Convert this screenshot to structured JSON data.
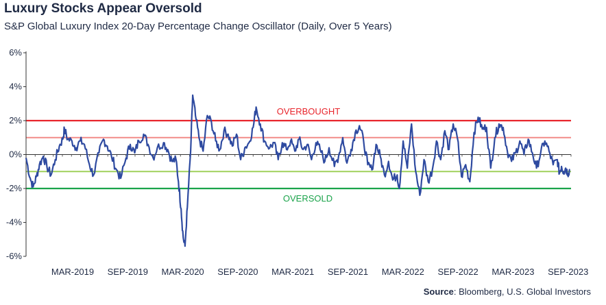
{
  "title": "Luxury Stocks Appear Oversold",
  "subtitle": "S&P Global Luxury Index 20-Day Percentage Change Oscillator (Daily, Over 5 Years)",
  "source_label": "Source",
  "source_text": ": Bloomberg, U.S. Global Investors",
  "colors": {
    "series": "#2e4aa0",
    "overbought": "#e8242b",
    "overbought_light": "#f28b87",
    "oversold": "#1aa34a",
    "oversold_light": "#9fd05a",
    "axis": "#333333",
    "text": "#1f2a44"
  },
  "chart_data": {
    "type": "line",
    "title": "Luxury Stocks Appear Oversold",
    "subtitle": "S&P Global Luxury Index 20-Day Percentage Change Oscillator (Daily, Over 5 Years)",
    "xlabel": "",
    "ylabel": "",
    "ylim": [
      -6,
      6
    ],
    "y_ticks": [
      6,
      4,
      2,
      0,
      -2,
      -4,
      -6
    ],
    "y_tick_labels": [
      "6%",
      "4%",
      "2%",
      "0%",
      "-2%",
      "-4%",
      "-6%"
    ],
    "x_ticks": [
      "MAR-2019",
      "SEP-2019",
      "MAR-2020",
      "SEP-2020",
      "MAR-2021",
      "SEP-2021",
      "MAR-2022",
      "SEP-2022",
      "MAR-2023",
      "SEP-2023"
    ],
    "xlim": [
      "2018-10-01",
      "2023-10-06"
    ],
    "grid": false,
    "reference_lines": [
      {
        "value": 2,
        "label": "OVERBOUGHT",
        "color": "#e8242b"
      },
      {
        "value": 1,
        "label": "",
        "color": "#f28b87"
      },
      {
        "value": -1,
        "label": "",
        "color": "#9fd05a"
      },
      {
        "value": -2,
        "label": "OVERSOLD",
        "color": "#1aa34a"
      }
    ],
    "series": [
      {
        "values": [
          [
            "2018-10-01",
            -0.2
          ],
          [
            "2018-10-15",
            -1.4
          ],
          [
            "2018-10-25",
            -1.9
          ],
          [
            "2018-11-05",
            -1.3
          ],
          [
            "2018-11-15",
            -0.6
          ],
          [
            "2018-11-28",
            -0.1
          ],
          [
            "2018-12-10",
            -0.7
          ],
          [
            "2018-12-24",
            -1.2
          ],
          [
            "2019-01-07",
            -0.3
          ],
          [
            "2019-01-21",
            0.5
          ],
          [
            "2019-02-01",
            0.9
          ],
          [
            "2019-02-07",
            1.5
          ],
          [
            "2019-02-18",
            0.9
          ],
          [
            "2019-03-04",
            0.8
          ],
          [
            "2019-03-18",
            0.4
          ],
          [
            "2019-04-01",
            0.8
          ],
          [
            "2019-04-15",
            0.6
          ],
          [
            "2019-05-02",
            -0.6
          ],
          [
            "2019-05-16",
            -1.2
          ],
          [
            "2019-06-03",
            0.1
          ],
          [
            "2019-06-18",
            0.9
          ],
          [
            "2019-07-01",
            0.5
          ],
          [
            "2019-07-15",
            -0.1
          ],
          [
            "2019-08-01",
            -0.9
          ],
          [
            "2019-08-15",
            -1.4
          ],
          [
            "2019-09-02",
            -0.2
          ],
          [
            "2019-09-16",
            0.6
          ],
          [
            "2019-10-01",
            0.1
          ],
          [
            "2019-10-15",
            0.8
          ],
          [
            "2019-10-31",
            1.2
          ],
          [
            "2019-11-15",
            0.6
          ],
          [
            "2019-12-02",
            -0.2
          ],
          [
            "2019-12-16",
            0.4
          ],
          [
            "2020-01-06",
            0.7
          ],
          [
            "2020-01-20",
            0.3
          ],
          [
            "2020-02-03",
            -0.4
          ],
          [
            "2020-02-17",
            -0.3
          ],
          [
            "2020-02-25",
            -1.6
          ],
          [
            "2020-03-05",
            -3.2
          ],
          [
            "2020-03-12",
            -4.9
          ],
          [
            "2020-03-18",
            -5.4
          ],
          [
            "2020-03-26",
            -3.1
          ],
          [
            "2020-04-06",
            0.2
          ],
          [
            "2020-04-13",
            3.5
          ],
          [
            "2020-04-22",
            2.3
          ],
          [
            "2020-05-04",
            1.0
          ],
          [
            "2020-05-18",
            0.2
          ],
          [
            "2020-06-01",
            2.3
          ],
          [
            "2020-06-15",
            1.9
          ],
          [
            "2020-06-29",
            0.8
          ],
          [
            "2020-07-13",
            0.3
          ],
          [
            "2020-07-27",
            1.4
          ],
          [
            "2020-08-10",
            1.2
          ],
          [
            "2020-08-24",
            0.5
          ],
          [
            "2020-09-07",
            1.2
          ],
          [
            "2020-09-21",
            -0.3
          ],
          [
            "2020-10-05",
            0.4
          ],
          [
            "2020-10-19",
            0.7
          ],
          [
            "2020-11-02",
            1.6
          ],
          [
            "2020-11-12",
            2.8
          ],
          [
            "2020-11-26",
            1.8
          ],
          [
            "2020-12-10",
            0.8
          ],
          [
            "2020-12-28",
            0.4
          ],
          [
            "2021-01-11",
            0.7
          ],
          [
            "2021-01-25",
            -0.3
          ],
          [
            "2021-02-08",
            0.7
          ],
          [
            "2021-02-22",
            0.3
          ],
          [
            "2021-03-08",
            0.8
          ],
          [
            "2021-03-22",
            0.2
          ],
          [
            "2021-04-05",
            0.9
          ],
          [
            "2021-04-19",
            0.3
          ],
          [
            "2021-05-03",
            0.6
          ],
          [
            "2021-05-17",
            -0.3
          ],
          [
            "2021-06-01",
            0.7
          ],
          [
            "2021-06-15",
            0.3
          ],
          [
            "2021-07-01",
            -0.4
          ],
          [
            "2021-07-15",
            0.4
          ],
          [
            "2021-08-02",
            -0.7
          ],
          [
            "2021-08-16",
            -0.1
          ],
          [
            "2021-08-30",
            1.0
          ],
          [
            "2021-09-13",
            -0.5
          ],
          [
            "2021-09-27",
            0.3
          ],
          [
            "2021-10-11",
            1.3
          ],
          [
            "2021-10-25",
            1.7
          ],
          [
            "2021-11-08",
            0.8
          ],
          [
            "2021-11-22",
            -0.6
          ],
          [
            "2021-12-06",
            -0.9
          ],
          [
            "2021-12-20",
            0.6
          ],
          [
            "2022-01-03",
            -0.1
          ],
          [
            "2022-01-17",
            -1.2
          ],
          [
            "2022-01-31",
            -0.4
          ],
          [
            "2022-02-14",
            -1.5
          ],
          [
            "2022-03-01",
            -1.2
          ],
          [
            "2022-03-08",
            -2.0
          ],
          [
            "2022-03-21",
            0.8
          ],
          [
            "2022-04-04",
            -0.8
          ],
          [
            "2022-04-18",
            1.8
          ],
          [
            "2022-05-02",
            -1.0
          ],
          [
            "2022-05-16",
            -2.4
          ],
          [
            "2022-05-30",
            -0.3
          ],
          [
            "2022-06-13",
            -1.6
          ],
          [
            "2022-06-27",
            -0.9
          ],
          [
            "2022-07-11",
            0.8
          ],
          [
            "2022-07-25",
            -0.3
          ],
          [
            "2022-08-08",
            1.4
          ],
          [
            "2022-08-22",
            0.3
          ],
          [
            "2022-09-05",
            1.8
          ],
          [
            "2022-09-19",
            1.0
          ],
          [
            "2022-10-03",
            -1.3
          ],
          [
            "2022-10-17",
            -0.6
          ],
          [
            "2022-10-31",
            -1.6
          ],
          [
            "2022-11-14",
            1.3
          ],
          [
            "2022-11-28",
            2.2
          ],
          [
            "2022-12-12",
            1.5
          ],
          [
            "2022-12-26",
            1.6
          ],
          [
            "2023-01-09",
            -0.8
          ],
          [
            "2023-01-23",
            1.0
          ],
          [
            "2023-02-06",
            1.8
          ],
          [
            "2023-02-20",
            1.6
          ],
          [
            "2023-03-06",
            0.2
          ],
          [
            "2023-03-20",
            -0.4
          ],
          [
            "2023-04-03",
            0.1
          ],
          [
            "2023-04-17",
            0.8
          ],
          [
            "2023-05-01",
            0.0
          ],
          [
            "2023-05-15",
            0.9
          ],
          [
            "2023-05-29",
            0.1
          ],
          [
            "2023-06-12",
            -0.8
          ],
          [
            "2023-06-26",
            0.1
          ],
          [
            "2023-07-10",
            0.8
          ],
          [
            "2023-07-24",
            0.2
          ],
          [
            "2023-08-07",
            -0.6
          ],
          [
            "2023-08-21",
            -0.3
          ],
          [
            "2023-08-28",
            -1.1
          ],
          [
            "2023-09-04",
            -0.7
          ],
          [
            "2023-09-11",
            -1.0
          ],
          [
            "2023-09-18",
            -0.8
          ],
          [
            "2023-09-25",
            -1.1
          ],
          [
            "2023-10-02",
            -0.9
          ]
        ]
      }
    ]
  }
}
